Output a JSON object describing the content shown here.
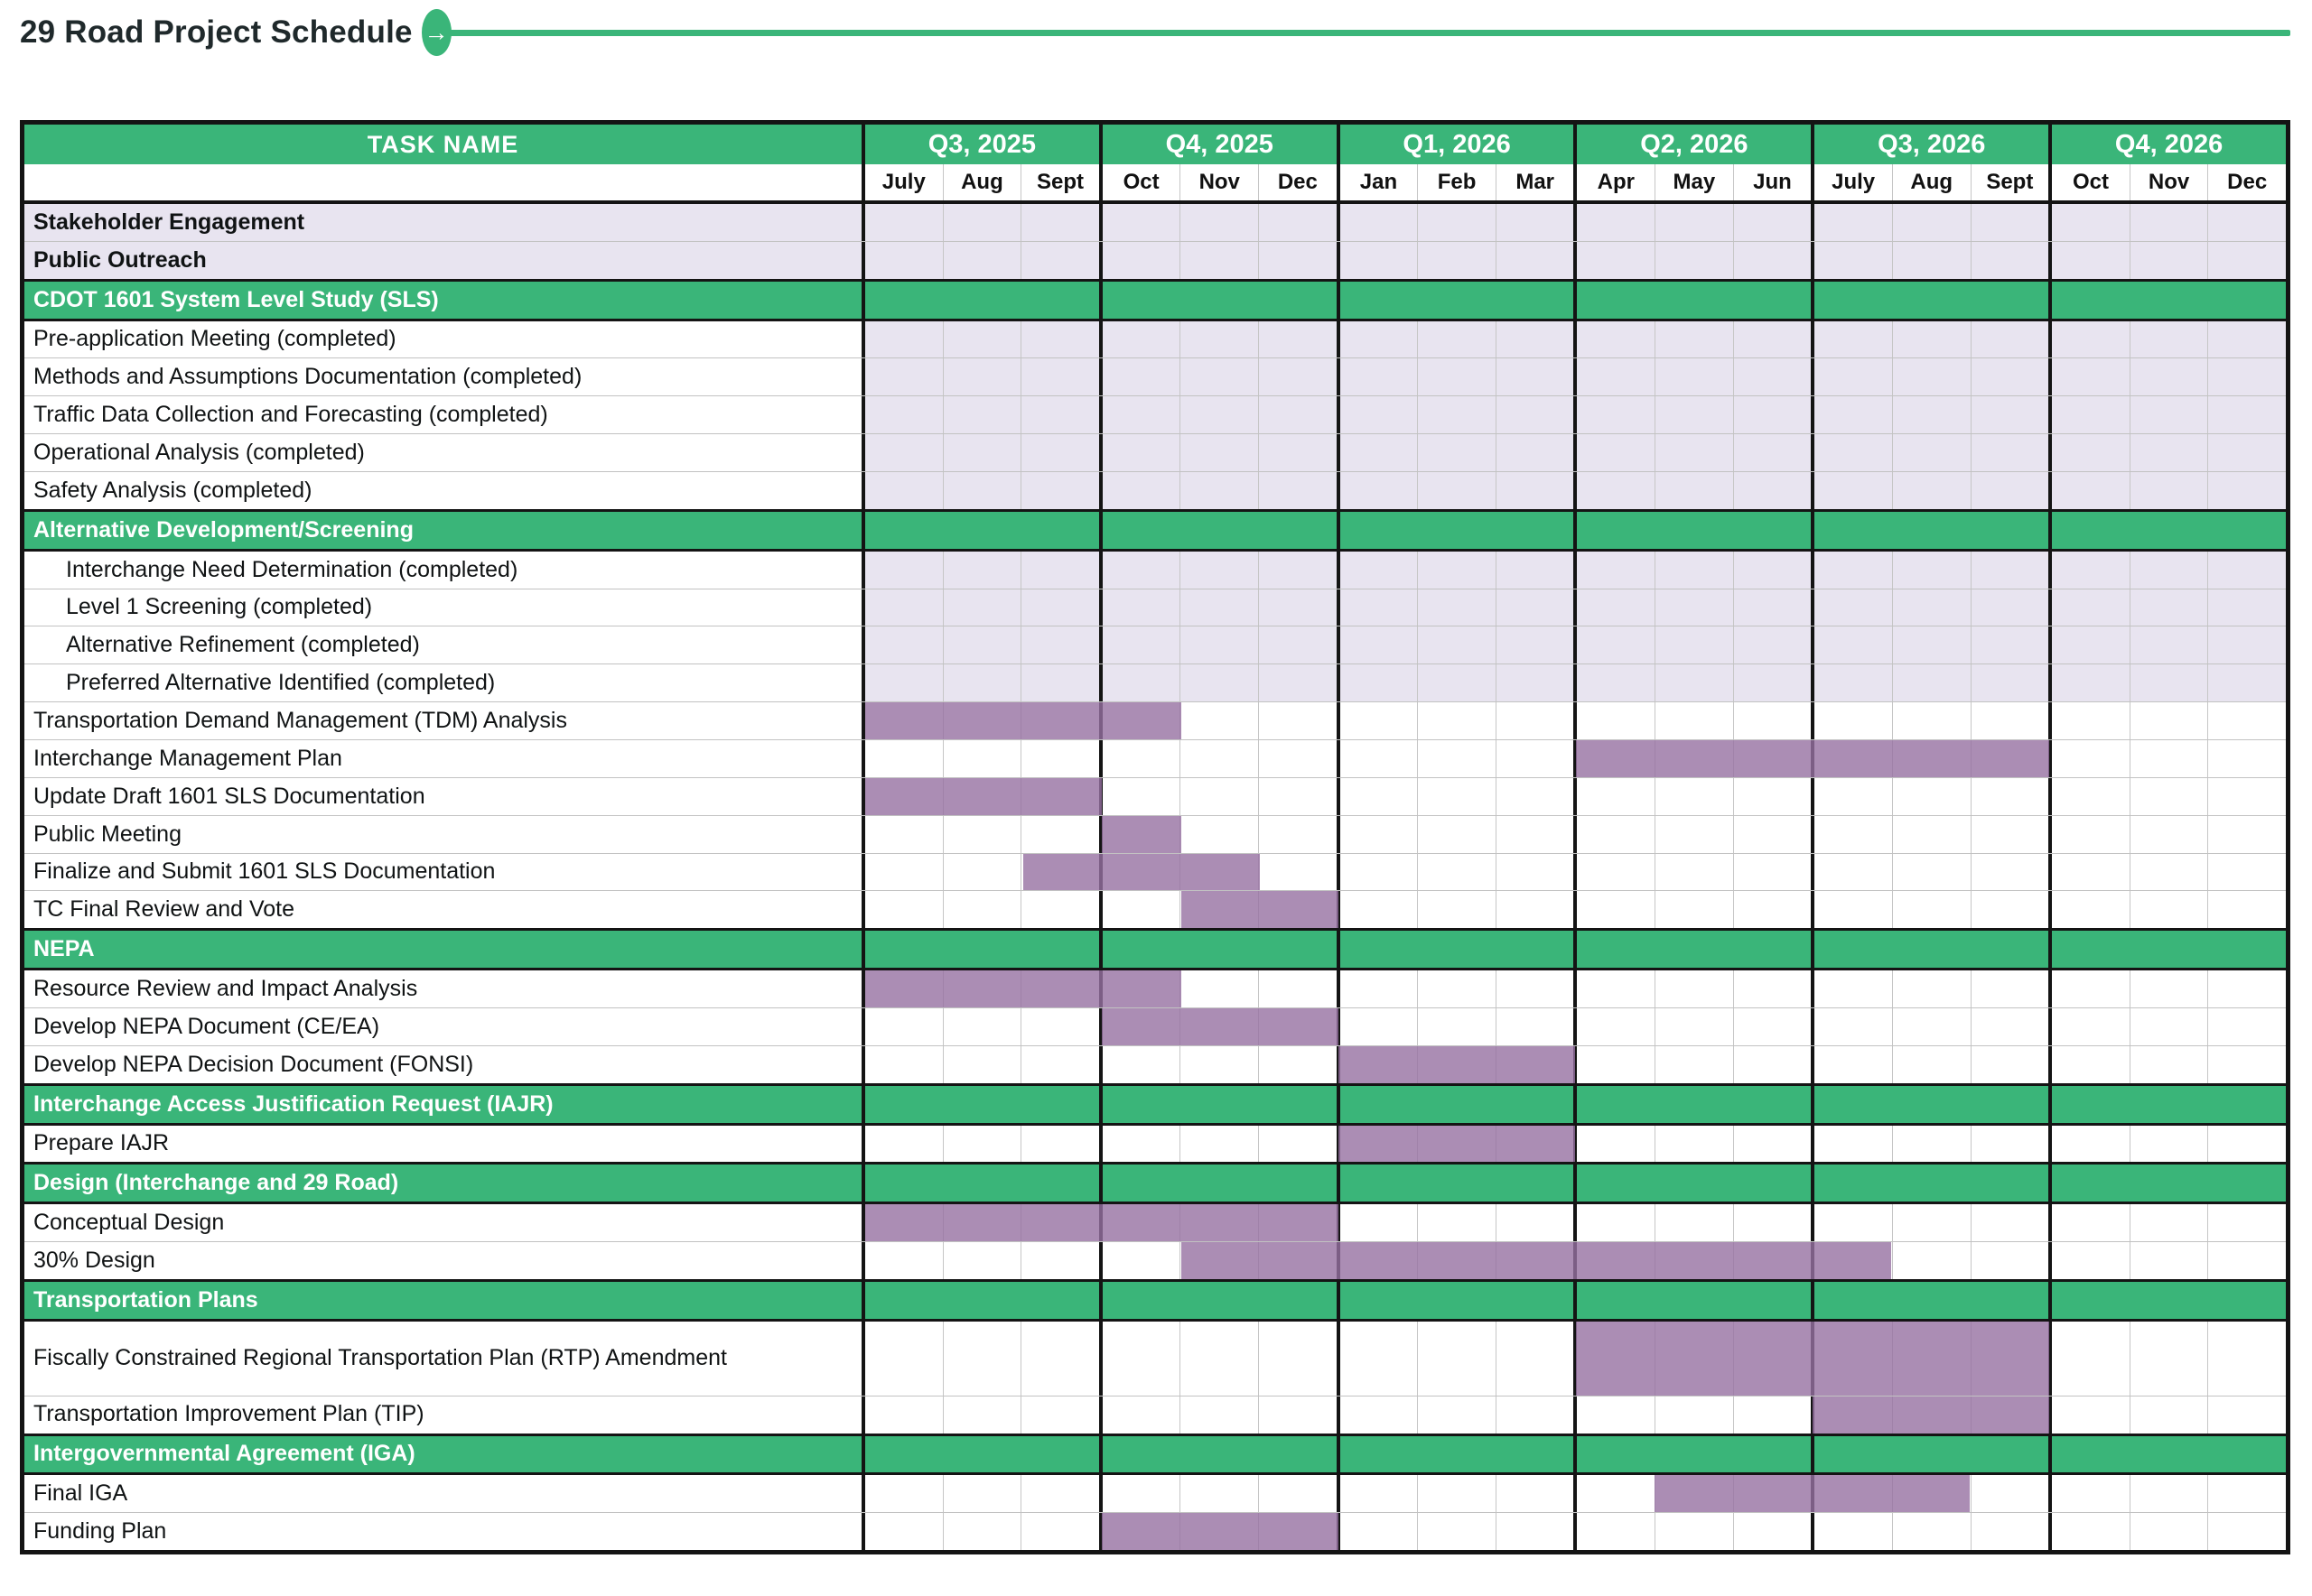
{
  "page": {
    "title": "29 Road Project Schedule"
  },
  "icons": {
    "arrow": "→"
  },
  "colors": {
    "green_accent": "#3ab579",
    "bar_purple": "#a98bb3",
    "completed_lavender": "#e8e4f0",
    "border_black": "#141414",
    "gridline_gray": "#c6c6c6"
  },
  "table": {
    "task_col_header": "TASK NAME",
    "quarters": [
      {
        "label": "Q3, 2025",
        "months": [
          "July",
          "Aug",
          "Sept"
        ]
      },
      {
        "label": "Q4, 2025",
        "months": [
          "Oct",
          "Nov",
          "Dec"
        ]
      },
      {
        "label": "Q1, 2026",
        "months": [
          "Jan",
          "Feb",
          "Mar"
        ]
      },
      {
        "label": "Q2, 2026",
        "months": [
          "Apr",
          "May",
          "Jun"
        ]
      },
      {
        "label": "Q3, 2026",
        "months": [
          "July",
          "Aug",
          "Sept"
        ]
      },
      {
        "label": "Q4, 2026",
        "months": [
          "Oct",
          "Nov",
          "Dec"
        ]
      }
    ],
    "rows": [
      {
        "label": "Stakeholder Engagement",
        "bold": true,
        "shaded": true,
        "full_shaded": true
      },
      {
        "label": "Public Outreach",
        "bold": true,
        "shaded": true,
        "full_shaded": true
      },
      {
        "label": "CDOT 1601 System Level Study (SLS)",
        "section": true
      },
      {
        "label": "Pre-application Meeting (completed)",
        "shaded": true
      },
      {
        "label": "Methods and Assumptions Documentation (completed)",
        "shaded": true
      },
      {
        "label": "Traffic Data Collection and Forecasting (completed)",
        "shaded": true
      },
      {
        "label": "Operational Analysis (completed)",
        "shaded": true
      },
      {
        "label": "Safety Analysis (completed)",
        "shaded": true
      },
      {
        "label": "Alternative Development/Screening",
        "section": true
      },
      {
        "label": "Interchange Need Determination (completed)",
        "shaded": true,
        "indent": true
      },
      {
        "label": "Level 1 Screening (completed)",
        "shaded": true,
        "indent": true
      },
      {
        "label": "Alternative Refinement (completed)",
        "shaded": true,
        "indent": true
      },
      {
        "label": "Preferred Alternative Identified (completed)",
        "shaded": true,
        "indent": true
      },
      {
        "label": "Transportation Demand Management (TDM) Analysis",
        "bar": [
          0,
          3
        ]
      },
      {
        "label": "Interchange Management Plan",
        "bar": [
          9,
          14
        ]
      },
      {
        "label": "Update Draft 1601 SLS Documentation",
        "bar": [
          0,
          2
        ]
      },
      {
        "label": "Public Meeting",
        "bar": [
          3,
          3
        ]
      },
      {
        "label": "Finalize and Submit 1601 SLS Documentation",
        "bar": [
          2,
          4
        ]
      },
      {
        "label": "TC Final Review and Vote",
        "bar": [
          4,
          5
        ]
      },
      {
        "label": "NEPA",
        "section": true
      },
      {
        "label": "Resource Review and Impact Analysis",
        "bar": [
          0,
          3
        ]
      },
      {
        "label": "Develop NEPA Document (CE/EA)",
        "bar": [
          3,
          5
        ]
      },
      {
        "label": "Develop NEPA Decision Document (FONSI)",
        "bar": [
          6,
          8
        ]
      },
      {
        "label": "Interchange Access Justification Request (IAJR)",
        "section": true
      },
      {
        "label": "Prepare IAJR",
        "bar": [
          6,
          8
        ]
      },
      {
        "label": "Design (Interchange and 29 Road)",
        "section": true
      },
      {
        "label": "Conceptual Design",
        "bar": [
          0,
          5
        ]
      },
      {
        "label": "30% Design",
        "bar": [
          4,
          12
        ]
      },
      {
        "label": "Transportation Plans",
        "section": true
      },
      {
        "label": "Fiscally Constrained Regional Transportation Plan (RTP) Amendment",
        "bar": [
          9,
          14
        ],
        "h": 2
      },
      {
        "label": "Transportation Improvement Plan (TIP)",
        "bar": [
          12,
          14
        ]
      },
      {
        "label": "Intergovernmental Agreement (IGA)",
        "section": true
      },
      {
        "label": "Final IGA",
        "bar": [
          10,
          13
        ]
      },
      {
        "label": "Funding Plan",
        "bar": [
          3,
          5
        ]
      }
    ]
  },
  "chart_data": {
    "type": "bar",
    "subtype": "gantt-schedule",
    "title": "29 Road Project Schedule",
    "x_axis_months": [
      "Jul 2025",
      "Aug 2025",
      "Sep 2025",
      "Oct 2025",
      "Nov 2025",
      "Dec 2025",
      "Jan 2026",
      "Feb 2026",
      "Mar 2026",
      "Apr 2026",
      "May 2026",
      "Jun 2026",
      "Jul 2026",
      "Aug 2026",
      "Sep 2026",
      "Oct 2026",
      "Nov 2026",
      "Dec 2026"
    ],
    "sections": [
      "CDOT 1601 System Level Study (SLS)",
      "Alternative Development/Screening",
      "NEPA",
      "Interchange Access Justification Request (IAJR)",
      "Design (Interchange and 29 Road)",
      "Transportation Plans",
      "Intergovernmental Agreement (IGA)"
    ],
    "tasks": [
      {
        "name": "Stakeholder Engagement",
        "status": "ongoing-shaded",
        "start": null,
        "end": null
      },
      {
        "name": "Public Outreach",
        "status": "ongoing-shaded",
        "start": null,
        "end": null
      },
      {
        "name": "Pre-application Meeting",
        "status": "completed"
      },
      {
        "name": "Methods and Assumptions Documentation",
        "status": "completed"
      },
      {
        "name": "Traffic Data Collection and Forecasting",
        "status": "completed"
      },
      {
        "name": "Operational Analysis",
        "status": "completed"
      },
      {
        "name": "Safety Analysis",
        "status": "completed"
      },
      {
        "name": "Interchange Need Determination",
        "status": "completed"
      },
      {
        "name": "Level 1 Screening",
        "status": "completed"
      },
      {
        "name": "Alternative Refinement",
        "status": "completed"
      },
      {
        "name": "Preferred Alternative Identified",
        "status": "completed"
      },
      {
        "name": "Transportation Demand Management (TDM) Analysis",
        "start": "Jul 2025",
        "end": "Oct 2025"
      },
      {
        "name": "Interchange Management Plan",
        "start": "Apr 2026",
        "end": "Sep 2026"
      },
      {
        "name": "Update Draft 1601 SLS Documentation",
        "start": "Jul 2025",
        "end": "Sep 2025"
      },
      {
        "name": "Public Meeting",
        "start": "Oct 2025",
        "end": "Oct 2025"
      },
      {
        "name": "Finalize and Submit 1601 SLS Documentation",
        "start": "Sep 2025",
        "end": "Nov 2025"
      },
      {
        "name": "TC Final Review and Vote",
        "start": "Nov 2025",
        "end": "Dec 2025"
      },
      {
        "name": "Resource Review and Impact Analysis",
        "start": "Jul 2025",
        "end": "Oct 2025"
      },
      {
        "name": "Develop NEPA Document (CE/EA)",
        "start": "Oct 2025",
        "end": "Dec 2025"
      },
      {
        "name": "Develop NEPA Decision Document (FONSI)",
        "start": "Jan 2026",
        "end": "Mar 2026"
      },
      {
        "name": "Prepare IAJR",
        "start": "Jan 2026",
        "end": "Mar 2026"
      },
      {
        "name": "Conceptual Design",
        "start": "Jul 2025",
        "end": "Dec 2025"
      },
      {
        "name": "30% Design",
        "start": "Nov 2025",
        "end": "Jul 2026"
      },
      {
        "name": "Fiscally Constrained Regional Transportation Plan (RTP) Amendment",
        "start": "Apr 2026",
        "end": "Sep 2026"
      },
      {
        "name": "Transportation Improvement Plan (TIP)",
        "start": "Jul 2026",
        "end": "Sep 2026"
      },
      {
        "name": "Final IGA",
        "start": "May 2026",
        "end": "Aug 2026"
      },
      {
        "name": "Funding Plan",
        "start": "Oct 2025",
        "end": "Dec 2025"
      }
    ],
    "legend_position": "none",
    "grid": true
  }
}
